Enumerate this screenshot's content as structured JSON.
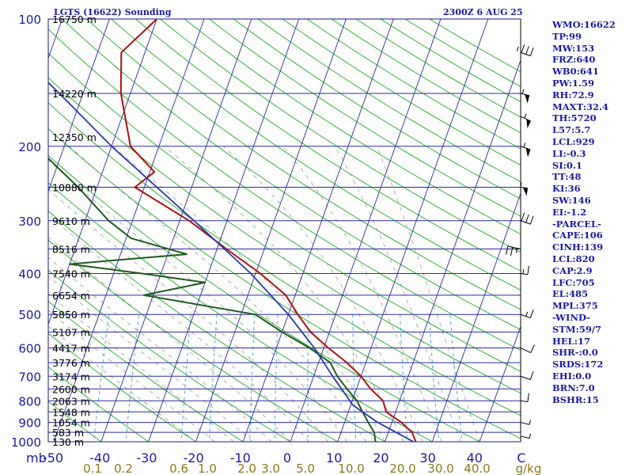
{
  "title": "LGTS (16622) Sounding",
  "time": "2300Z  6 AUG 25",
  "colors": {
    "isobar": "#2a2aa0",
    "isotherm": "#2a2aa0",
    "dry_adiabat": "#22aa22",
    "moist_adiabat": "#9a9a9a",
    "mixing_ratio": "#3aa0d8",
    "temperature": "#aa1111",
    "dewpoint": "#1e5a1e",
    "parcel": "#2a3aa8",
    "text": "#1a1aa0",
    "mixing_label": "#8a7a1a"
  },
  "stats": [
    "WMO:16622",
    "TP:99",
    "MW:153",
    "FRZ:640",
    "WB0:641",
    "PW:1.59",
    "RH:72.9",
    "MAXT:32.4",
    "TH:5720",
    "L57:5.7",
    "LCL:929",
    "LI:-0.3",
    "SI:0.1",
    "TT:48",
    "KI:36",
    "SW:146",
    "EI:-1.2",
    "-PARCEL-",
    "CAPE:106",
    "CINH:139",
    "LCL:820",
    "CAP:2.9",
    "LFC:705",
    "EL:485",
    "MPL:375",
    "-WIND-",
    "STM:59/7",
    "HEL:17",
    "SHR-:0.0",
    "SRDS:172",
    "EHI:0.0",
    "BRN:7.0",
    "BSHR:15"
  ],
  "units": {
    "pressure": "mb",
    "mixing_ratio": "g/kg"
  },
  "chart_data": {
    "type": "line",
    "title": "LGTS (16622) Sounding",
    "subtitle": "2300Z  6 AUG 25",
    "xlabel": "",
    "ylabel": "mb",
    "x_ticks": [
      "-50",
      "-40",
      "-30",
      "-20",
      "-10",
      "0",
      "10",
      "20",
      "30",
      "40",
      "C"
    ],
    "y_scale": "log",
    "ylim": [
      1000,
      100
    ],
    "pressure_ticks": [
      1000,
      900,
      800,
      700,
      600,
      500,
      400,
      300,
      200,
      100
    ],
    "height_labels": [
      {
        "p": 100,
        "label": "16750 m"
      },
      {
        "p": 150,
        "label": "14220 m"
      },
      {
        "p": 190,
        "label": "12350 m"
      },
      {
        "p": 250,
        "label": "10880 m"
      },
      {
        "p": 300,
        "label": "9610 m"
      },
      {
        "p": 350,
        "label": "8516 m"
      },
      {
        "p": 400,
        "label": "7540 m"
      },
      {
        "p": 450,
        "label": "6654 m"
      },
      {
        "p": 500,
        "label": "5850 m"
      },
      {
        "p": 550,
        "label": "5107 m"
      },
      {
        "p": 600,
        "label": "4417 m"
      },
      {
        "p": 650,
        "label": "3776 m"
      },
      {
        "p": 700,
        "label": "3174 m"
      },
      {
        "p": 750,
        "label": "2600 m"
      },
      {
        "p": 800,
        "label": "2063 m"
      },
      {
        "p": 850,
        "label": "1548 m"
      },
      {
        "p": 900,
        "label": "1054 m"
      },
      {
        "p": 950,
        "label": "583 m"
      },
      {
        "p": 1000,
        "label": "130 m"
      }
    ],
    "mixing_ratio_labels": [
      "0.1",
      "0.2",
      "0.6",
      "1.0",
      "2.0",
      "3.0",
      "5.0",
      "10.0",
      "20.0",
      "30.0",
      "40.0",
      "g/kg"
    ],
    "mixing_ratio_values": [
      0.1,
      0.2,
      0.6,
      1.0,
      2.0,
      3.0,
      5.0,
      10.0,
      20.0,
      30.0,
      40.0
    ],
    "series": [
      {
        "key": "temperature",
        "points": [
          {
            "p": 1012,
            "t": 25.5
          },
          {
            "p": 1000,
            "t": 26.5
          },
          {
            "p": 950,
            "t": 25
          },
          {
            "p": 900,
            "t": 22
          },
          {
            "p": 850,
            "t": 18
          },
          {
            "p": 800,
            "t": 16.5
          },
          {
            "p": 750,
            "t": 13
          },
          {
            "p": 700,
            "t": 10
          },
          {
            "p": 650,
            "t": 6
          },
          {
            "p": 600,
            "t": 1
          },
          {
            "p": 550,
            "t": -4
          },
          {
            "p": 500,
            "t": -8
          },
          {
            "p": 450,
            "t": -12
          },
          {
            "p": 400,
            "t": -19
          },
          {
            "p": 350,
            "t": -28
          },
          {
            "p": 300,
            "t": -38
          },
          {
            "p": 250,
            "t": -52
          },
          {
            "p": 230,
            "t": -49
          },
          {
            "p": 200,
            "t": -56
          },
          {
            "p": 150,
            "t": -62
          },
          {
            "p": 120,
            "t": -65
          },
          {
            "p": 100,
            "t": -60
          }
        ]
      },
      {
        "key": "dewpoint",
        "points": [
          {
            "p": 1012,
            "t": 20
          },
          {
            "p": 1000,
            "t": 18
          },
          {
            "p": 950,
            "t": 17
          },
          {
            "p": 900,
            "t": 15
          },
          {
            "p": 850,
            "t": 13
          },
          {
            "p": 800,
            "t": 11
          },
          {
            "p": 750,
            "t": 8
          },
          {
            "p": 700,
            "t": 5
          },
          {
            "p": 650,
            "t": 2.5
          },
          {
            "p": 600,
            "t": -3
          },
          {
            "p": 550,
            "t": -10
          },
          {
            "p": 500,
            "t": -17
          },
          {
            "p": 450,
            "t": -42
          },
          {
            "p": 420,
            "t": -30
          },
          {
            "p": 400,
            "t": -44
          },
          {
            "p": 380,
            "t": -60
          },
          {
            "p": 360,
            "t": -36
          },
          {
            "p": 330,
            "t": -49
          },
          {
            "p": 300,
            "t": -55
          },
          {
            "p": 250,
            "t": -64
          },
          {
            "p": 200,
            "t": -76
          },
          {
            "p": 150,
            "t": -85
          },
          {
            "p": 120,
            "t": -90
          },
          {
            "p": 110,
            "t": -88
          },
          {
            "p": 100,
            "t": -85
          }
        ]
      },
      {
        "key": "parcel",
        "points": [
          {
            "p": 1000,
            "t": 26
          },
          {
            "p": 900,
            "t": 17
          },
          {
            "p": 820,
            "t": 10.5
          },
          {
            "p": 700,
            "t": 4
          },
          {
            "p": 600,
            "t": -2
          },
          {
            "p": 500,
            "t": -10
          },
          {
            "p": 400,
            "t": -21
          },
          {
            "p": 300,
            "t": -37
          },
          {
            "p": 200,
            "t": -60
          },
          {
            "p": 150,
            "t": -75
          },
          {
            "p": 120,
            "t": -87
          }
        ]
      }
    ],
    "wind_barbs": [
      {
        "p": 970,
        "dir": 250,
        "spd_kt": 5
      },
      {
        "p": 900,
        "dir": 290,
        "spd_kt": 5
      },
      {
        "p": 800,
        "dir": 300,
        "spd_kt": 10
      },
      {
        "p": 700,
        "dir": 280,
        "spd_kt": 10
      },
      {
        "p": 600,
        "dir": 270,
        "spd_kt": 10
      },
      {
        "p": 500,
        "dir": 260,
        "spd_kt": 15
      },
      {
        "p": 400,
        "dir": 300,
        "spd_kt": 15
      },
      {
        "p": 350,
        "dir": 180,
        "spd_kt": 25
      },
      {
        "p": 300,
        "dir": 260,
        "spd_kt": 30
      },
      {
        "p": 250,
        "dir": 240,
        "spd_kt": 55
      },
      {
        "p": 200,
        "dir": 280,
        "spd_kt": 55
      },
      {
        "p": 170,
        "dir": 270,
        "spd_kt": 55
      },
      {
        "p": 150,
        "dir": 250,
        "spd_kt": 55
      },
      {
        "p": 120,
        "dir": 260,
        "spd_kt": 35
      }
    ]
  }
}
